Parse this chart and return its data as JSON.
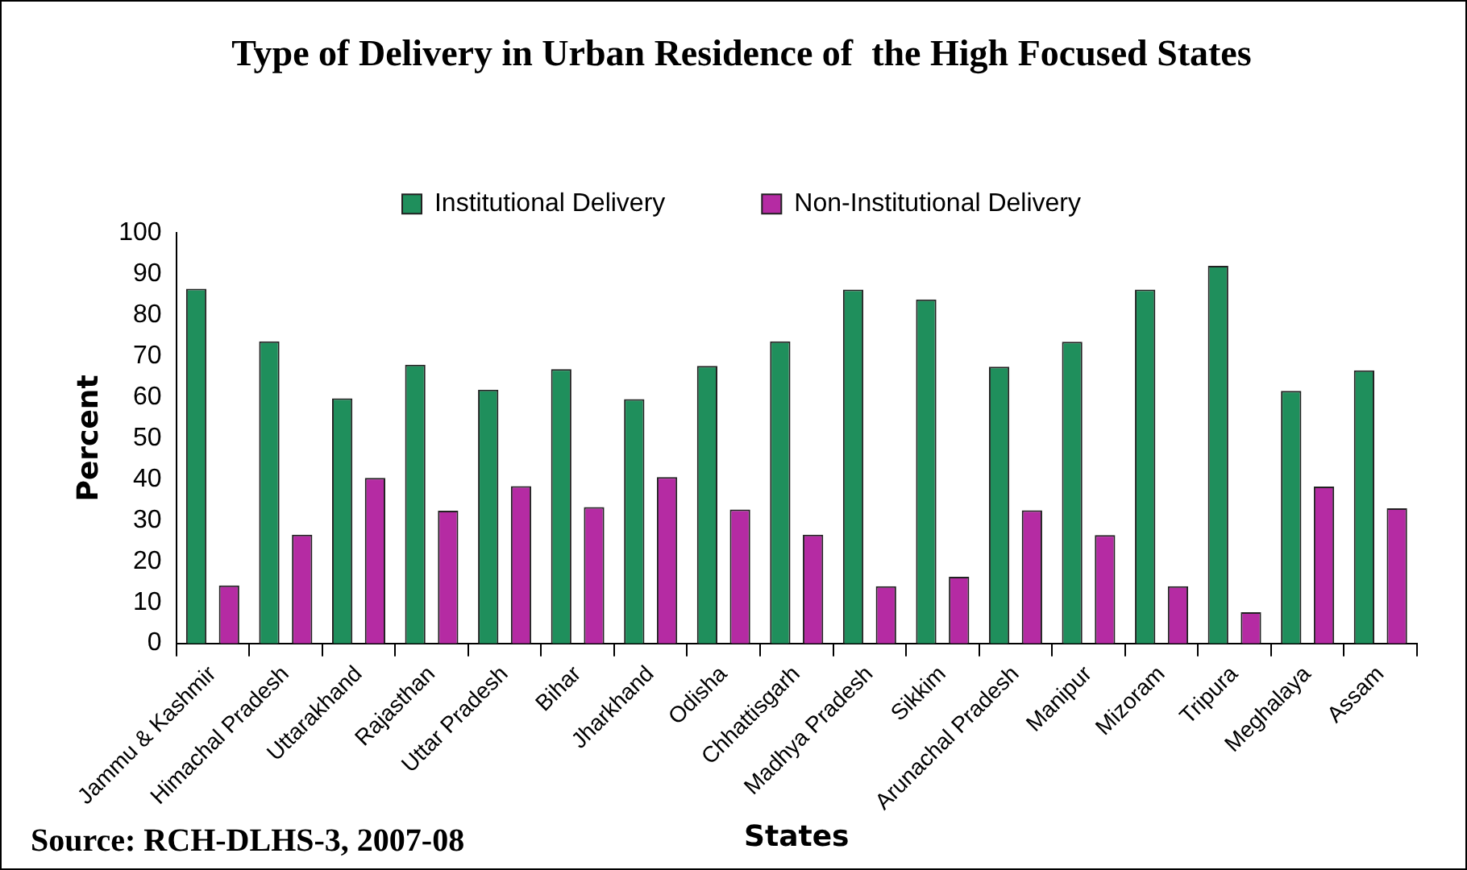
{
  "chart_data": {
    "type": "bar",
    "title": "Type of Delivery in Urban Residence of  the High Focused States",
    "xlabel": "States",
    "ylabel": "Percent",
    "categories": [
      "Jammu & Kashmir",
      "Himachal Pradesh",
      "Uttarakhand",
      "Rajasthan",
      "Uttar Pradesh",
      "Bihar",
      "Jharkhand",
      "Odisha",
      "Chhattisgarh",
      "Madhya Pradesh",
      "Sikkim",
      "Arunachal Pradesh",
      "Manipur",
      "Mizoram",
      "Tripura",
      "Meghalaya",
      "Assam"
    ],
    "series": [
      {
        "name": "Institutional Delivery",
        "color": "#1f8f5c",
        "values": [
          86.4,
          73.6,
          59.7,
          67.9,
          61.8,
          66.8,
          59.5,
          67.6,
          73.6,
          86.2,
          83.8,
          67.4,
          73.5,
          86.2,
          92,
          61.5,
          66.5
        ]
      },
      {
        "name": "Non-Institutional Delivery",
        "color": "#b52ba3",
        "values": [
          14.1,
          26.5,
          40.3,
          32.3,
          38.3,
          33.2,
          40.5,
          32.6,
          26.5,
          13.9,
          16.2,
          32.4,
          26.4,
          13.9,
          7.6,
          38.2,
          32.9
        ]
      }
    ],
    "ylim": [
      0,
      100
    ],
    "yticks": [
      0,
      10,
      20,
      30,
      40,
      50,
      60,
      70,
      80,
      90,
      100
    ],
    "grid": false,
    "legend": "top",
    "annotations": [
      "Source: RCH-DLHS-3, 2007-08"
    ]
  }
}
